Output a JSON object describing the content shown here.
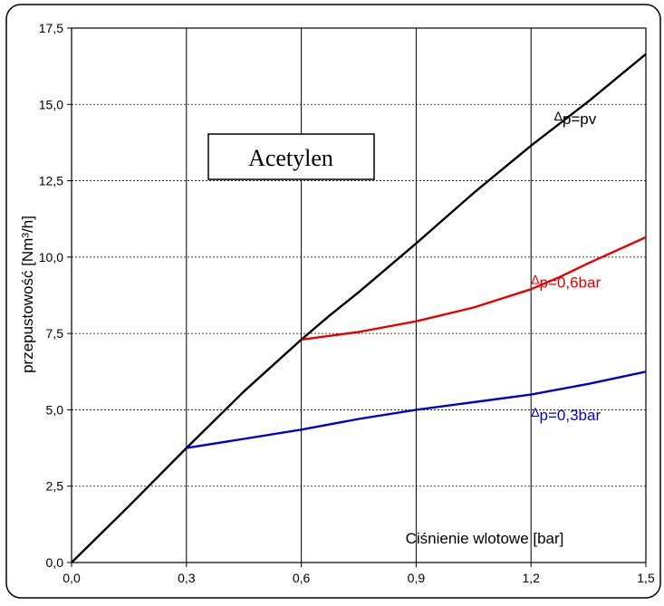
{
  "chart_data": {
    "type": "line",
    "title": "Acetylen",
    "xlabel": "Ciśnienie wlotowe [bar]",
    "ylabel": "przepustowość [Nm³/h]",
    "xlim": [
      0,
      1.5
    ],
    "ylim": [
      0,
      17.5
    ],
    "x_ticks": [
      "0,0",
      "0,3",
      "0,6",
      "0,9",
      "1,2",
      "1,5"
    ],
    "y_ticks": [
      "0,0",
      "2,5",
      "5,0",
      "7,5",
      "10,0",
      "12,5",
      "15,0",
      "17,5"
    ],
    "grid": {
      "vertical": "solid",
      "horizontal": "dotted"
    },
    "series": [
      {
        "name": "Δp=pv",
        "color": "#000000",
        "points": [
          [
            0,
            0
          ],
          [
            0.15,
            1.85
          ],
          [
            0.3,
            3.75
          ],
          [
            0.45,
            5.6
          ],
          [
            0.6,
            7.3
          ],
          [
            0.675,
            8.1
          ],
          [
            0.75,
            8.85
          ],
          [
            0.9,
            10.45
          ],
          [
            1.05,
            12.1
          ],
          [
            1.2,
            13.65
          ],
          [
            1.35,
            15.1
          ],
          [
            1.5,
            16.65
          ]
        ]
      },
      {
        "name": "Δp=0,6bar",
        "color": "#e60000",
        "points": [
          [
            0.6,
            7.3
          ],
          [
            0.75,
            7.55
          ],
          [
            0.9,
            7.9
          ],
          [
            1.05,
            8.35
          ],
          [
            1.2,
            8.95
          ],
          [
            1.275,
            9.35
          ],
          [
            1.35,
            9.8
          ],
          [
            1.5,
            10.65
          ]
        ]
      },
      {
        "name": "Δp=0,3bar",
        "color": "#0000cc",
        "points": [
          [
            0.3,
            3.75
          ],
          [
            0.45,
            4.05
          ],
          [
            0.6,
            4.35
          ],
          [
            0.75,
            4.7
          ],
          [
            0.9,
            5.0
          ],
          [
            1.05,
            5.25
          ],
          [
            1.2,
            5.5
          ],
          [
            1.35,
            5.85
          ],
          [
            1.5,
            6.25
          ]
        ]
      }
    ],
    "annotations": [
      {
        "prefix": "Δ",
        "text": "p=pv",
        "color": "#000000",
        "x": 1.26,
        "y": 14.35
      },
      {
        "prefix": "Δ",
        "text": "p=0,6bar",
        "color": "#e60000",
        "x": 1.2,
        "y": 9.0
      },
      {
        "prefix": "Δ",
        "text": "p=0,3bar",
        "color": "#0000cc",
        "x": 1.2,
        "y": 4.65
      }
    ]
  }
}
